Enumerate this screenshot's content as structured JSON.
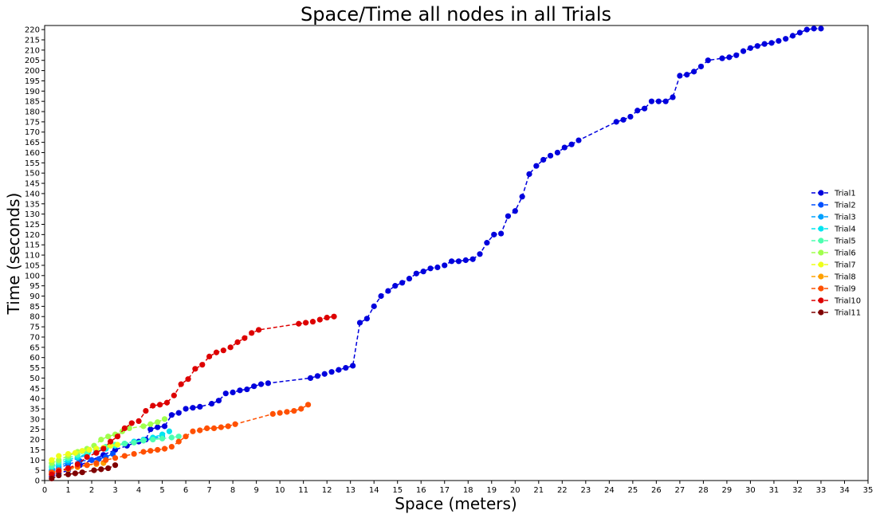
{
  "chart_data": {
    "type": "line",
    "title": "Space/Time all nodes in all Trials",
    "xlabel": "Space (meters)",
    "ylabel": "Time (seconds)",
    "xlim": [
      0,
      35
    ],
    "ylim": [
      0,
      222
    ],
    "xticks": [
      0,
      1,
      2,
      3,
      4,
      5,
      6,
      7,
      8,
      9,
      10,
      11,
      12,
      13,
      14,
      15,
      16,
      17,
      18,
      19,
      20,
      21,
      22,
      23,
      24,
      25,
      26,
      27,
      28,
      29,
      30,
      31,
      32,
      33,
      34,
      35
    ],
    "yticks": [
      0,
      5,
      10,
      15,
      20,
      25,
      30,
      35,
      40,
      45,
      50,
      55,
      60,
      65,
      70,
      75,
      80,
      85,
      90,
      95,
      100,
      105,
      110,
      115,
      120,
      125,
      130,
      135,
      140,
      145,
      150,
      155,
      160,
      165,
      170,
      175,
      180,
      185,
      190,
      195,
      200,
      205,
      210,
      215,
      220
    ],
    "grid": false,
    "legend_position": "right",
    "line_style": "dashed",
    "marker": "circle",
    "series": [
      {
        "name": "Trial1",
        "color": "#0000dd",
        "points": [
          [
            0.3,
            2
          ],
          [
            0.6,
            3.5
          ],
          [
            1,
            5
          ],
          [
            1.5,
            7.5
          ],
          [
            2,
            10
          ],
          [
            2.5,
            12.5
          ],
          [
            3,
            15
          ],
          [
            3.5,
            17
          ],
          [
            4,
            19
          ],
          [
            4.3,
            20
          ],
          [
            4.5,
            25
          ],
          [
            4.8,
            26
          ],
          [
            5.1,
            26.5
          ],
          [
            5.4,
            32
          ],
          [
            5.7,
            33
          ],
          [
            6,
            35
          ],
          [
            6.3,
            35.5
          ],
          [
            6.6,
            36
          ],
          [
            7.1,
            37.5
          ],
          [
            7.4,
            39
          ],
          [
            7.7,
            42.5
          ],
          [
            8,
            43
          ],
          [
            8.3,
            44
          ],
          [
            8.6,
            44.5
          ],
          [
            8.9,
            46
          ],
          [
            9.2,
            47
          ],
          [
            9.5,
            47.5
          ],
          [
            11.3,
            50
          ],
          [
            11.6,
            51
          ],
          [
            11.9,
            52
          ],
          [
            12.2,
            53
          ],
          [
            12.5,
            54
          ],
          [
            12.8,
            55
          ],
          [
            13.1,
            56
          ],
          [
            13.4,
            77
          ],
          [
            13.7,
            79
          ],
          [
            14,
            85
          ],
          [
            14.3,
            90
          ],
          [
            14.6,
            92.5
          ],
          [
            14.9,
            95
          ],
          [
            15.2,
            96.5
          ],
          [
            15.5,
            98.5
          ],
          [
            15.8,
            101
          ],
          [
            16.1,
            102
          ],
          [
            16.4,
            103.5
          ],
          [
            16.7,
            104
          ],
          [
            17,
            105
          ],
          [
            17.3,
            107
          ],
          [
            17.6,
            107
          ],
          [
            17.9,
            107.5
          ],
          [
            18.2,
            108
          ],
          [
            18.5,
            110.5
          ],
          [
            18.8,
            116
          ],
          [
            19.1,
            120
          ],
          [
            19.4,
            120.5
          ],
          [
            19.7,
            129
          ],
          [
            20,
            131.5
          ],
          [
            20.3,
            138.5
          ],
          [
            20.6,
            149.5
          ],
          [
            20.9,
            153.5
          ],
          [
            21.2,
            156.5
          ],
          [
            21.5,
            158.5
          ],
          [
            21.8,
            160
          ],
          [
            22.1,
            162.5
          ],
          [
            22.4,
            164
          ],
          [
            22.7,
            166
          ],
          [
            24.3,
            175
          ],
          [
            24.6,
            176
          ],
          [
            24.9,
            177.5
          ],
          [
            25.2,
            180.5
          ],
          [
            25.5,
            181.5
          ],
          [
            25.8,
            185
          ],
          [
            26.1,
            185
          ],
          [
            26.4,
            185
          ],
          [
            26.7,
            187
          ],
          [
            27,
            197.5
          ],
          [
            27.3,
            198
          ],
          [
            27.6,
            199.5
          ],
          [
            27.9,
            202
          ],
          [
            28.2,
            205
          ],
          [
            28.8,
            206
          ],
          [
            29.1,
            206.5
          ],
          [
            29.4,
            207.5
          ],
          [
            29.7,
            209.5
          ],
          [
            30,
            211
          ],
          [
            30.3,
            212
          ],
          [
            30.6,
            213
          ],
          [
            30.9,
            213.5
          ],
          [
            31.2,
            214.5
          ],
          [
            31.5,
            215.5
          ],
          [
            31.8,
            217
          ],
          [
            32.1,
            218.5
          ],
          [
            32.4,
            220
          ],
          [
            32.7,
            220.5
          ],
          [
            33,
            220.5
          ]
        ]
      },
      {
        "name": "Trial2",
        "color": "#0050ff",
        "points": [
          [
            0.3,
            4.5
          ],
          [
            0.6,
            6
          ],
          [
            1,
            8
          ],
          [
            1.5,
            9.5
          ],
          [
            2,
            10
          ],
          [
            2.3,
            10.5
          ],
          [
            2.6,
            11.5
          ],
          [
            2.9,
            13
          ]
        ]
      },
      {
        "name": "Trial3",
        "color": "#00a0ff",
        "points": [
          [
            0.3,
            5
          ],
          [
            0.6,
            7
          ],
          [
            1,
            9
          ],
          [
            1.4,
            11
          ],
          [
            1.8,
            12.5
          ],
          [
            2.2,
            14
          ],
          [
            2.6,
            15.5
          ],
          [
            3,
            17
          ],
          [
            3.4,
            18
          ],
          [
            3.8,
            19
          ],
          [
            4.2,
            19.5
          ],
          [
            4.6,
            20.5
          ],
          [
            5,
            21.5
          ]
        ]
      },
      {
        "name": "Trial4",
        "color": "#00e5f0",
        "points": [
          [
            0.3,
            6.5
          ],
          [
            0.6,
            8
          ],
          [
            1,
            10
          ],
          [
            1.4,
            11.5
          ],
          [
            1.8,
            13
          ],
          [
            2.2,
            14.5
          ],
          [
            2.6,
            15.5
          ],
          [
            3,
            17
          ],
          [
            3.4,
            18
          ],
          [
            3.8,
            19
          ],
          [
            4.2,
            20
          ],
          [
            4.6,
            21
          ],
          [
            5,
            22.5
          ],
          [
            5.3,
            24
          ]
        ]
      },
      {
        "name": "Trial5",
        "color": "#4dffb0",
        "points": [
          [
            0.3,
            7
          ],
          [
            0.6,
            9
          ],
          [
            1,
            11
          ],
          [
            1.4,
            12.5
          ],
          [
            1.8,
            14
          ],
          [
            2.2,
            15.5
          ],
          [
            2.6,
            16.5
          ],
          [
            3,
            17.5
          ],
          [
            3.4,
            18
          ],
          [
            3.8,
            18.5
          ],
          [
            4.2,
            19.5
          ],
          [
            4.6,
            20
          ],
          [
            5,
            20.5
          ],
          [
            5.4,
            21
          ],
          [
            5.7,
            21.5
          ]
        ]
      },
      {
        "name": "Trial6",
        "color": "#a0ff4d",
        "points": [
          [
            0.3,
            8.5
          ],
          [
            0.6,
            10
          ],
          [
            1,
            12
          ],
          [
            1.4,
            14
          ],
          [
            1.8,
            15.5
          ],
          [
            2.1,
            17
          ],
          [
            2.4,
            20
          ],
          [
            2.7,
            21.5
          ],
          [
            3,
            22.5
          ],
          [
            3.3,
            24
          ],
          [
            3.6,
            25.5
          ],
          [
            4.2,
            26.5
          ],
          [
            4.5,
            27.5
          ],
          [
            4.8,
            28.5
          ],
          [
            5.1,
            30
          ]
        ]
      },
      {
        "name": "Trial7",
        "color": "#eeff1a",
        "points": [
          [
            0.3,
            10
          ],
          [
            0.6,
            12
          ],
          [
            1,
            13
          ],
          [
            1.3,
            13.5
          ],
          [
            1.6,
            14.5
          ],
          [
            1.9,
            15
          ],
          [
            2.2,
            15.5
          ],
          [
            2.5,
            16
          ],
          [
            2.8,
            17
          ],
          [
            3.1,
            17.5
          ]
        ]
      },
      {
        "name": "Trial8",
        "color": "#ffa000",
        "points": [
          [
            0.3,
            3
          ],
          [
            0.6,
            4.5
          ],
          [
            1,
            5.5
          ],
          [
            1.4,
            6.5
          ],
          [
            1.8,
            7.5
          ],
          [
            2.2,
            8
          ],
          [
            2.5,
            8.5
          ]
        ]
      },
      {
        "name": "Trial9",
        "color": "#ff5000",
        "points": [
          [
            0.3,
            4
          ],
          [
            0.6,
            5
          ],
          [
            1,
            6
          ],
          [
            1.4,
            7
          ],
          [
            1.8,
            7.5
          ],
          [
            2.2,
            8.5
          ],
          [
            2.6,
            10
          ],
          [
            3,
            11
          ],
          [
            3.4,
            12
          ],
          [
            3.8,
            13
          ],
          [
            4.2,
            14
          ],
          [
            4.5,
            14.5
          ],
          [
            4.8,
            15
          ],
          [
            5.1,
            15.5
          ],
          [
            5.4,
            16.5
          ],
          [
            5.7,
            19
          ],
          [
            6,
            21.5
          ],
          [
            6.3,
            24
          ],
          [
            6.6,
            24.5
          ],
          [
            6.9,
            25.5
          ],
          [
            7.2,
            25.5
          ],
          [
            7.5,
            26
          ],
          [
            7.8,
            26.5
          ],
          [
            8.1,
            27.5
          ],
          [
            9.7,
            32.5
          ],
          [
            10,
            33
          ],
          [
            10.3,
            33.5
          ],
          [
            10.6,
            34
          ],
          [
            10.9,
            35
          ],
          [
            11.2,
            37
          ]
        ]
      },
      {
        "name": "Trial10",
        "color": "#dd0000",
        "points": [
          [
            0.3,
            3
          ],
          [
            0.6,
            4.5
          ],
          [
            1,
            6
          ],
          [
            1.4,
            8
          ],
          [
            1.8,
            11.5
          ],
          [
            2.2,
            13.5
          ],
          [
            2.5,
            15.5
          ],
          [
            2.8,
            19
          ],
          [
            3.1,
            21.5
          ],
          [
            3.4,
            25.5
          ],
          [
            3.7,
            28
          ],
          [
            4,
            29
          ],
          [
            4.3,
            34
          ],
          [
            4.6,
            36.5
          ],
          [
            4.9,
            37
          ],
          [
            5.2,
            38
          ],
          [
            5.5,
            41.5
          ],
          [
            5.8,
            47
          ],
          [
            6.1,
            49.5
          ],
          [
            6.4,
            54.5
          ],
          [
            6.7,
            56.5
          ],
          [
            7,
            60.5
          ],
          [
            7.3,
            62.5
          ],
          [
            7.6,
            63.5
          ],
          [
            7.9,
            65
          ],
          [
            8.2,
            67.5
          ],
          [
            8.5,
            69.5
          ],
          [
            8.8,
            72
          ],
          [
            9.1,
            73.5
          ],
          [
            10.8,
            76.5
          ],
          [
            11.1,
            77
          ],
          [
            11.4,
            77.5
          ],
          [
            11.7,
            78.5
          ],
          [
            12,
            79.5
          ],
          [
            12.3,
            80
          ]
        ]
      },
      {
        "name": "Trial11",
        "color": "#800000",
        "points": [
          [
            0.3,
            1
          ],
          [
            0.6,
            2.5
          ],
          [
            1,
            3
          ],
          [
            1.3,
            3.5
          ],
          [
            1.6,
            4
          ],
          [
            2.1,
            5
          ],
          [
            2.4,
            5.5
          ],
          [
            2.7,
            6
          ],
          [
            3,
            7.5
          ]
        ]
      }
    ]
  }
}
